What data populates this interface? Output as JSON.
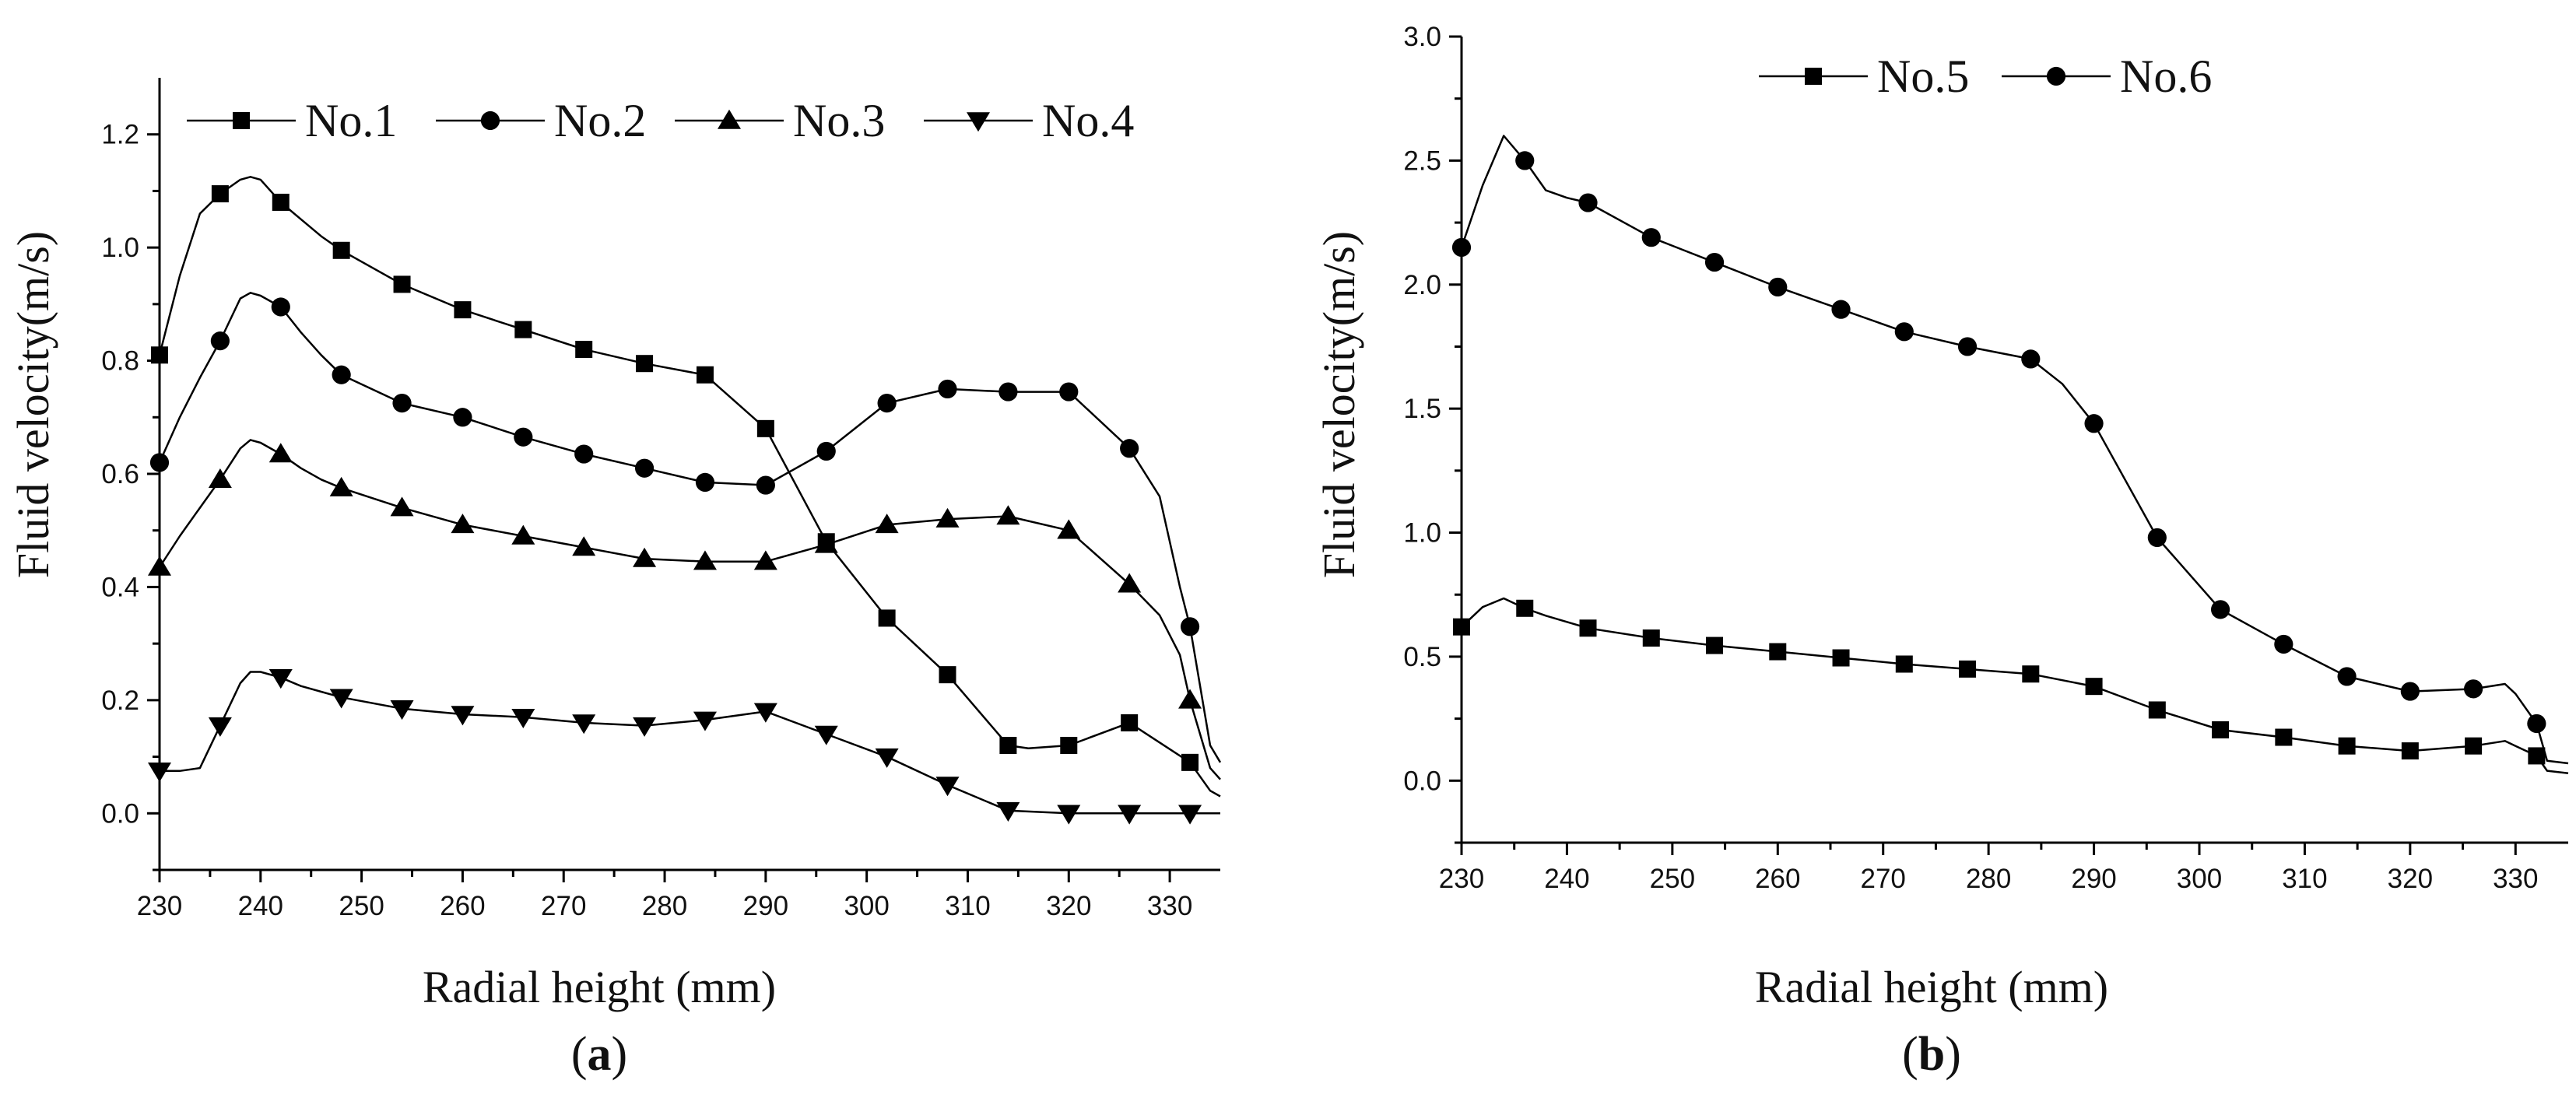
{
  "figure": {
    "panel_a_label": "a",
    "panel_b_label": "b"
  },
  "chart_data": [
    {
      "id": "a",
      "type": "line",
      "panel_label": "a",
      "title": "",
      "xlabel": "Radial height (mm)",
      "ylabel": "Fluid velocity(m/s)",
      "xlim": [
        230,
        335
      ],
      "ylim": [
        -0.1,
        1.3
      ],
      "xticks": [
        230,
        240,
        250,
        260,
        270,
        280,
        290,
        300,
        310,
        320,
        330
      ],
      "yticks": [
        0.0,
        0.2,
        0.4,
        0.6,
        0.8,
        1.0,
        1.2
      ],
      "ytick_labels": [
        "0.0",
        "0.2",
        "0.4",
        "0.6",
        "0.8",
        "1.0",
        "1.2"
      ],
      "legend_position": "top",
      "series": [
        {
          "name": "No.1",
          "marker": "square",
          "x": [
            230,
            232,
            234,
            236,
            238,
            239,
            240,
            242,
            244,
            246,
            248,
            254,
            260,
            266,
            272,
            278,
            284,
            290,
            296,
            302,
            308,
            314,
            316,
            320,
            326,
            332,
            334,
            335
          ],
          "y": [
            0.81,
            0.95,
            1.06,
            1.095,
            1.12,
            1.125,
            1.12,
            1.08,
            1.05,
            1.02,
            0.995,
            0.935,
            0.89,
            0.855,
            0.82,
            0.795,
            0.775,
            0.68,
            0.48,
            0.345,
            0.245,
            0.12,
            0.115,
            0.12,
            0.16,
            0.09,
            0.04,
            0.03
          ],
          "markers_x": [
            230,
            236,
            242,
            248,
            254,
            260,
            266,
            272,
            278,
            284,
            290,
            296,
            302,
            308,
            314,
            320,
            326,
            332
          ],
          "markers_y": [
            0.81,
            1.095,
            1.08,
            0.995,
            0.935,
            0.89,
            0.855,
            0.82,
            0.795,
            0.775,
            0.68,
            0.48,
            0.345,
            0.245,
            0.12,
            0.12,
            0.16,
            0.09
          ]
        },
        {
          "name": "No.2",
          "marker": "circle",
          "x": [
            230,
            232,
            234,
            236,
            238,
            239,
            240,
            242,
            244,
            246,
            248,
            254,
            260,
            266,
            272,
            278,
            284,
            290,
            296,
            302,
            308,
            314,
            320,
            326,
            329,
            331,
            332,
            334,
            335
          ],
          "y": [
            0.62,
            0.7,
            0.77,
            0.835,
            0.91,
            0.92,
            0.915,
            0.895,
            0.85,
            0.81,
            0.775,
            0.725,
            0.7,
            0.665,
            0.635,
            0.61,
            0.585,
            0.58,
            0.64,
            0.725,
            0.75,
            0.745,
            0.745,
            0.645,
            0.56,
            0.4,
            0.33,
            0.12,
            0.09
          ],
          "markers_x": [
            230,
            236,
            242,
            248,
            254,
            260,
            266,
            272,
            278,
            284,
            290,
            296,
            302,
            308,
            314,
            320,
            326,
            332
          ],
          "markers_y": [
            0.62,
            0.835,
            0.895,
            0.775,
            0.725,
            0.7,
            0.665,
            0.635,
            0.61,
            0.585,
            0.58,
            0.64,
            0.725,
            0.75,
            0.745,
            0.745,
            0.645,
            0.33
          ]
        },
        {
          "name": "No.3",
          "marker": "triangle-up",
          "x": [
            230,
            232,
            234,
            236,
            238,
            239,
            240,
            242,
            244,
            246,
            248,
            254,
            260,
            266,
            272,
            278,
            284,
            290,
            296,
            302,
            308,
            314,
            320,
            326,
            329,
            331,
            332,
            334,
            335
          ],
          "y": [
            0.435,
            0.49,
            0.54,
            0.59,
            0.645,
            0.66,
            0.655,
            0.635,
            0.61,
            0.59,
            0.575,
            0.54,
            0.51,
            0.49,
            0.47,
            0.45,
            0.445,
            0.445,
            0.475,
            0.51,
            0.52,
            0.525,
            0.5,
            0.405,
            0.35,
            0.28,
            0.2,
            0.08,
            0.06
          ],
          "markers_x": [
            230,
            236,
            242,
            248,
            254,
            260,
            266,
            272,
            278,
            284,
            290,
            296,
            302,
            308,
            314,
            320,
            326,
            332
          ],
          "markers_y": [
            0.435,
            0.59,
            0.635,
            0.575,
            0.54,
            0.51,
            0.49,
            0.47,
            0.45,
            0.445,
            0.445,
            0.475,
            0.51,
            0.52,
            0.525,
            0.5,
            0.405,
            0.2
          ]
        },
        {
          "name": "No.4",
          "marker": "triangle-down",
          "x": [
            230,
            232,
            234,
            236,
            238,
            239,
            240,
            242,
            244,
            246,
            248,
            254,
            260,
            266,
            272,
            278,
            284,
            290,
            296,
            302,
            308,
            314,
            320,
            326,
            332,
            335
          ],
          "y": [
            0.075,
            0.075,
            0.08,
            0.155,
            0.23,
            0.25,
            0.25,
            0.24,
            0.225,
            0.215,
            0.205,
            0.185,
            0.175,
            0.17,
            0.16,
            0.155,
            0.165,
            0.18,
            0.14,
            0.1,
            0.05,
            0.005,
            0.0,
            0.0,
            0.0,
            0.0
          ],
          "markers_x": [
            230,
            236,
            242,
            248,
            254,
            260,
            266,
            272,
            278,
            284,
            290,
            296,
            302,
            308,
            314,
            320,
            326,
            332
          ],
          "markers_y": [
            0.075,
            0.155,
            0.24,
            0.205,
            0.185,
            0.175,
            0.17,
            0.16,
            0.155,
            0.165,
            0.18,
            0.14,
            0.1,
            0.05,
            0.005,
            0.0,
            0.0,
            0.0
          ]
        }
      ]
    },
    {
      "id": "b",
      "type": "line",
      "panel_label": "b",
      "title": "",
      "xlabel": "Radial height (mm)",
      "ylabel": "Fluid velocity(m/s)",
      "xlim": [
        230,
        335
      ],
      "ylim": [
        -0.25,
        3.0
      ],
      "xticks": [
        230,
        240,
        250,
        260,
        270,
        280,
        290,
        300,
        310,
        320,
        330
      ],
      "yticks": [
        0.0,
        0.5,
        1.0,
        1.5,
        2.0,
        2.5,
        3.0
      ],
      "ytick_labels": [
        "0.0",
        "0.5",
        "1.0",
        "1.5",
        "2.0",
        "2.5",
        "3.0"
      ],
      "legend_position": "top",
      "series": [
        {
          "name": "No.5",
          "marker": "square",
          "x": [
            230,
            232,
            234,
            236,
            238,
            240,
            242,
            248,
            254,
            260,
            266,
            272,
            278,
            284,
            290,
            296,
            302,
            308,
            314,
            320,
            326,
            329,
            330,
            332,
            333,
            335
          ],
          "y": [
            0.62,
            0.7,
            0.735,
            0.695,
            0.665,
            0.64,
            0.615,
            0.575,
            0.545,
            0.52,
            0.495,
            0.47,
            0.45,
            0.43,
            0.38,
            0.285,
            0.205,
            0.175,
            0.14,
            0.12,
            0.14,
            0.16,
            0.14,
            0.1,
            0.04,
            0.03
          ],
          "markers_x": [
            230,
            236,
            242,
            248,
            254,
            260,
            266,
            272,
            278,
            284,
            290,
            296,
            302,
            308,
            314,
            320,
            326,
            332
          ],
          "markers_y": [
            0.62,
            0.695,
            0.615,
            0.575,
            0.545,
            0.52,
            0.495,
            0.47,
            0.45,
            0.43,
            0.38,
            0.285,
            0.205,
            0.175,
            0.14,
            0.12,
            0.14,
            0.1
          ]
        },
        {
          "name": "No.6",
          "marker": "circle",
          "x": [
            230,
            232,
            234,
            236,
            238,
            240,
            242,
            248,
            254,
            260,
            266,
            272,
            278,
            284,
            287,
            290,
            296,
            302,
            308,
            314,
            320,
            326,
            329,
            330,
            332,
            333,
            335
          ],
          "y": [
            2.15,
            2.4,
            2.6,
            2.5,
            2.38,
            2.35,
            2.33,
            2.19,
            2.09,
            1.99,
            1.9,
            1.81,
            1.75,
            1.7,
            1.6,
            1.44,
            0.98,
            0.69,
            0.55,
            0.42,
            0.36,
            0.37,
            0.39,
            0.35,
            0.23,
            0.08,
            0.07
          ],
          "markers_x": [
            230,
            236,
            242,
            248,
            254,
            260,
            266,
            272,
            278,
            284,
            290,
            296,
            302,
            308,
            314,
            320,
            326,
            332
          ],
          "markers_y": [
            2.15,
            2.5,
            2.33,
            2.19,
            2.09,
            1.99,
            1.9,
            1.81,
            1.75,
            1.7,
            1.44,
            0.98,
            0.69,
            0.55,
            0.42,
            0.36,
            0.37,
            0.23
          ]
        }
      ]
    }
  ]
}
